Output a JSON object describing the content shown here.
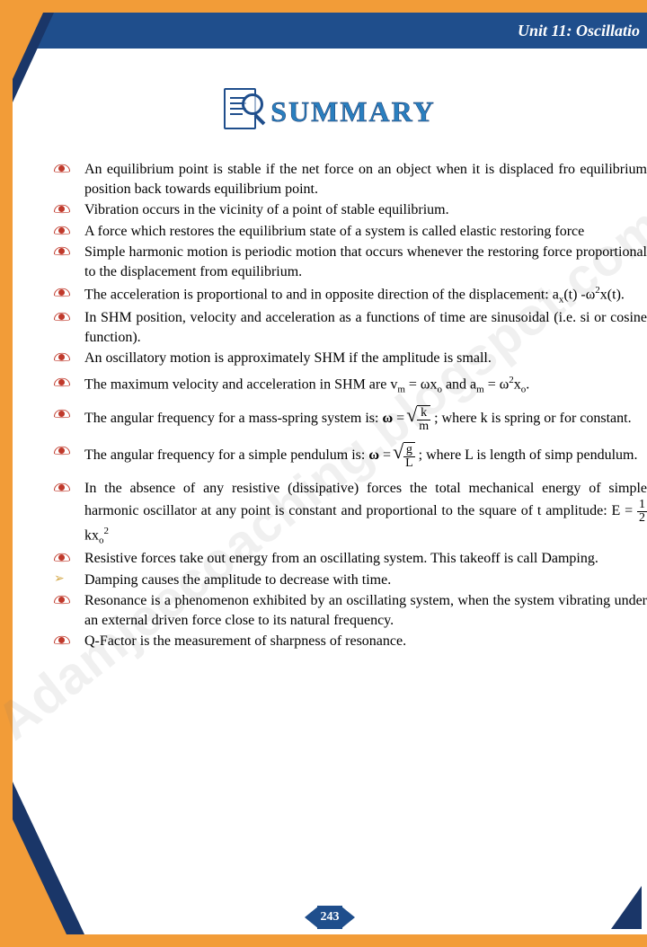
{
  "header": {
    "unit": "Unit 11: Oscillatio"
  },
  "title": "SUMMARY",
  "watermark": "Adamjeecoaching.blogspot.com",
  "pageNumber": "243",
  "bullets": [
    {
      "t": "eye",
      "text": "An equilibrium point is stable if the net force on an object when it is displaced fro equilibrium position back towards equilibrium point."
    },
    {
      "t": "eye",
      "text": "Vibration occurs in the vicinity of a point of stable equilibrium."
    },
    {
      "t": "eye",
      "text": "A force which restores the equilibrium state of a system is called elastic restoring force"
    },
    {
      "t": "eye",
      "text": "Simple harmonic motion is periodic motion that occurs whenever the restoring force proportional to the displacement from equilibrium."
    },
    {
      "t": "eye",
      "html": "The acceleration is proportional to and in opposite direction of the displacement:  a<sub>x</sub>(t) -ω<sup>2</sup>x(t)."
    },
    {
      "t": "eye",
      "text": "In SHM position, velocity and acceleration as a functions of time are sinusoidal (i.e. si or cosine function)."
    },
    {
      "t": "eye",
      "text": "An oscillatory motion is approximately SHM if the amplitude is small."
    },
    {
      "t": "eye",
      "html": "The maximum velocity and acceleration in SHM are v<sub>m</sub> = ωx<sub>o</sub> and a<sub>m</sub> = ω<sup>2</sup>x<sub>o</sub>."
    },
    {
      "t": "eye",
      "html": "The angular frequency for a mass-spring system is: <b>ω</b> = <span class='sqrt'><span class='frac'><span class='n'>k</span><span class='d'>m</span></span></span> ; where k is spring or for constant."
    },
    {
      "t": "eye",
      "html": "The angular frequency for a simple pendulum is: <b>ω</b> = <span class='sqrt'><span class='frac'><span class='n'>g</span><span class='d'>L</span></span></span> ; where L is length of simp pendulum."
    },
    {
      "t": "eye",
      "html": "In the absence of any resistive (dissipative) forces the total mechanical energy of simple harmonic oscillator at any point is constant and proportional to the square of t amplitude: E = <span class='frac'><span class='n'>1</span><span class='d'>2</span></span> kx<sub>o</sub><sup>2</sup>"
    },
    {
      "t": "eye",
      "text": "Resistive forces take out energy from an oscillating system. This takeoff is call Damping."
    },
    {
      "t": "arrow",
      "text": "Damping causes the amplitude to decrease with time."
    },
    {
      "t": "eye",
      "text": "Resonance is a phenomenon exhibited by an oscillating system, when the system vibrating under an external driven force close to its natural frequency."
    },
    {
      "t": "eye",
      "text": "Q-Factor is the measurement of sharpness of resonance."
    }
  ],
  "colors": {
    "orange": "#f29c38",
    "blue": "#1f4e8c",
    "darkblue": "#1a3668",
    "red": "#c0392b",
    "titleblue": "#2a7fbf"
  }
}
